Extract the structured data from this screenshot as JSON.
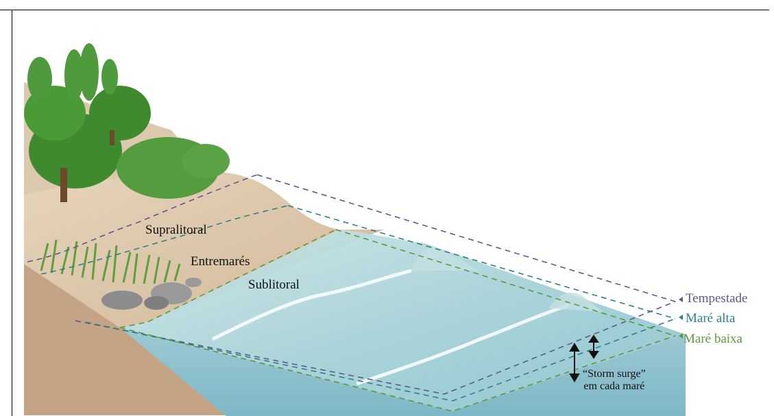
{
  "zones": {
    "supralitoral": "Supralitoral",
    "entremares": "Entremarés",
    "sublitoral": "Sublitoral"
  },
  "levels": {
    "tempestade": {
      "label": "Tempestade",
      "color": "#5a5a8a"
    },
    "mare_alta": {
      "label": "Maré alta",
      "color": "#2f7f86"
    },
    "mare_baixa": {
      "label": "Maré baixa",
      "color": "#5a9a3a"
    }
  },
  "note": {
    "line1": "“Storm surge”",
    "line2": "em cada maré"
  },
  "colors": {
    "water": "#a9d3d8",
    "sand": "#d9c3a6",
    "soil": "#c7a98a",
    "grass": "#6aa84f",
    "tree": "#3f8a2e"
  }
}
